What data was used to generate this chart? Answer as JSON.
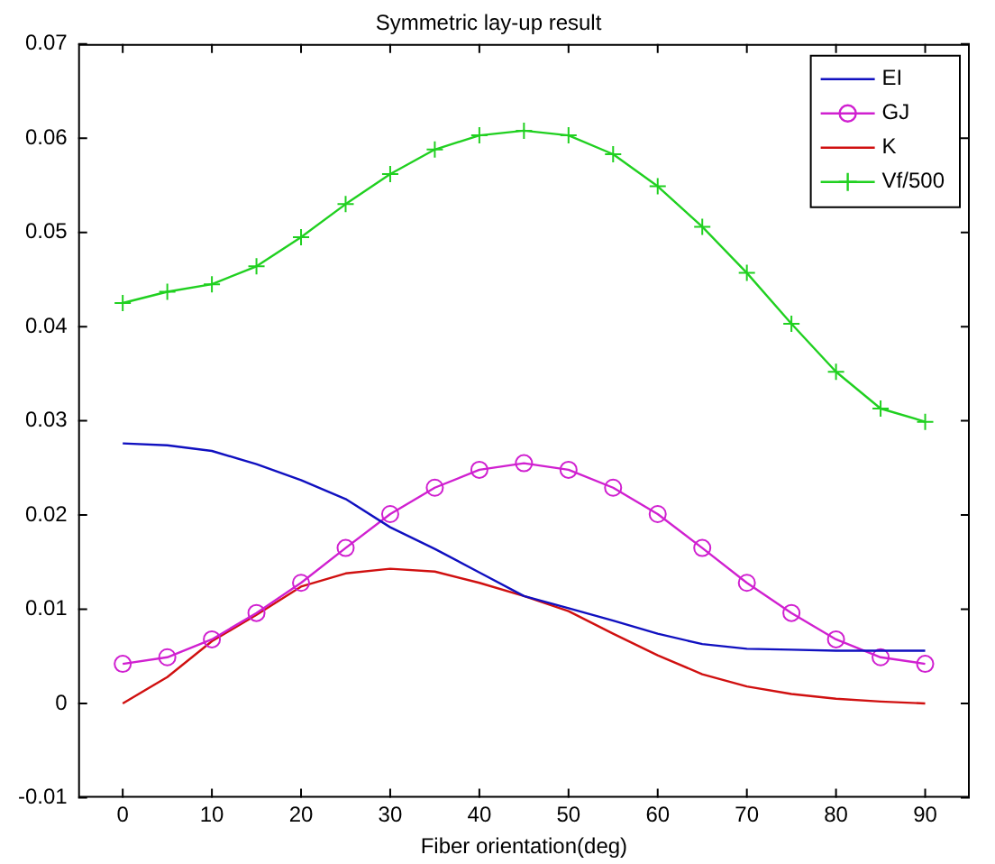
{
  "chart_data": {
    "type": "line",
    "title": "Symmetric lay-up result",
    "xlabel": "Fiber orientation(deg)",
    "x": [
      0,
      5,
      10,
      15,
      20,
      25,
      30,
      35,
      40,
      45,
      50,
      55,
      60,
      65,
      70,
      75,
      80,
      85,
      90
    ],
    "series": [
      {
        "name": "EI",
        "color": "#1010c0",
        "marker": "none",
        "values": [
          0.0276,
          0.0274,
          0.0268,
          0.0254,
          0.0237,
          0.0217,
          0.0187,
          0.0164,
          0.0139,
          0.0114,
          0.0101,
          0.0088,
          0.0074,
          0.0063,
          0.0058,
          0.0057,
          0.0056,
          0.0056,
          0.0056
        ]
      },
      {
        "name": "GJ",
        "color": "#d020d0",
        "marker": "circle",
        "values": [
          0.0042,
          0.0049,
          0.0068,
          0.0096,
          0.0128,
          0.0165,
          0.0201,
          0.0229,
          0.0248,
          0.0255,
          0.0248,
          0.0229,
          0.0201,
          0.0165,
          0.0128,
          0.0096,
          0.0068,
          0.0049,
          0.0042
        ]
      },
      {
        "name": "K",
        "color": "#d01010",
        "marker": "none",
        "values": [
          0,
          0.0028,
          0.0066,
          0.0094,
          0.0124,
          0.0138,
          0.0143,
          0.014,
          0.0128,
          0.0114,
          0.0098,
          0.0074,
          0.0051,
          0.0031,
          0.0018,
          0.001,
          0.0005,
          0.0002,
          0
        ]
      },
      {
        "name": "Vf/500",
        "color": "#20d020",
        "marker": "cross",
        "values": [
          0.0425,
          0.0437,
          0.0445,
          0.0464,
          0.0495,
          0.053,
          0.0562,
          0.0588,
          0.0603,
          0.0608,
          0.0603,
          0.0583,
          0.0549,
          0.0506,
          0.0457,
          0.0403,
          0.0352,
          0.0313,
          0.0299
        ]
      }
    ],
    "xlim": [
      -5,
      95
    ],
    "xticks": [
      0,
      10,
      20,
      30,
      40,
      50,
      60,
      70,
      80,
      90
    ],
    "ylim": [
      -0.01,
      0.07
    ],
    "yticks": [
      -0.01,
      0,
      0.01,
      0.02,
      0.03,
      0.04,
      0.05,
      0.06,
      0.07
    ],
    "grid": false,
    "legend": "top right",
    "line_style": "solid"
  }
}
